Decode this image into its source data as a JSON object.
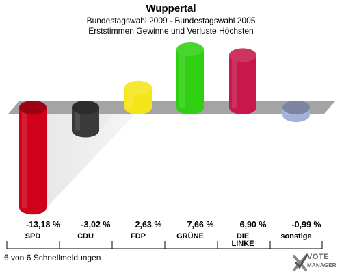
{
  "header": {
    "title": "Wuppertal",
    "subtitle1": "Bundestagswahl 2009 - Bundestagswahl 2005",
    "subtitle2": "Erststimmen Gewinne und Verluste Höchsten"
  },
  "chart_data": {
    "type": "bar",
    "categories": [
      "SPD",
      "CDU",
      "FDP",
      "GRÜNE",
      "DIE LINKE",
      "sonstige"
    ],
    "values": [
      -13.18,
      -3.02,
      2.63,
      7.66,
      6.9,
      -0.99
    ],
    "value_labels": [
      "-13,18 %",
      "-3,02 %",
      "2,63 %",
      "7,66 %",
      "6,90 %",
      "-0,99 %"
    ],
    "colors": [
      "#d0021b",
      "#3a3a3a",
      "#f5e61a",
      "#2fcf12",
      "#c8174a",
      "#a6b0d8"
    ]
  },
  "footer": {
    "note": "6 von 6 Schnellmeldungen"
  },
  "logo": {
    "line1": "VOTE",
    "line2": "MANAGER",
    "icon": "checkmark-x-icon"
  }
}
